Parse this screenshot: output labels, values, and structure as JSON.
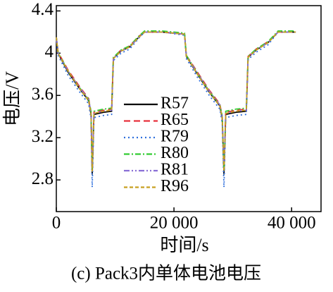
{
  "chart_data": {
    "type": "line",
    "caption": "(c) Pack3内单体电池电压",
    "xlabel": "时间/s",
    "ylabel": "电压/V",
    "x": [
      0,
      300,
      2000,
      4000,
      5500,
      5900,
      6100,
      6400,
      8000,
      9400,
      9700,
      11000,
      12500,
      14000,
      15000,
      18000,
      21800,
      22100,
      24000,
      26000,
      27800,
      28200,
      28500,
      28800,
      30500,
      32300,
      32600,
      34000,
      36000,
      37700,
      40700
    ],
    "xlim": [
      0,
      45000
    ],
    "xticks": [
      0,
      {
        "value": 20000,
        "label": "20 000"
      },
      {
        "value": 40000,
        "label": "40 000"
      }
    ],
    "ylim": [
      2.5,
      4.45
    ],
    "yticks": [
      2.8,
      3.2,
      3.6,
      4.0,
      4.4
    ],
    "legend": "center-left",
    "series": [
      {
        "name": "R57",
        "color": "#000000",
        "dash": "solid",
        "values": [
          4.15,
          4.0,
          3.82,
          3.66,
          3.55,
          3.42,
          2.85,
          3.42,
          3.44,
          3.45,
          3.95,
          4.02,
          4.06,
          4.15,
          4.2,
          4.2,
          4.18,
          3.97,
          3.8,
          3.63,
          3.5,
          3.38,
          2.85,
          3.42,
          3.44,
          3.45,
          3.96,
          4.03,
          4.1,
          4.2,
          4.2
        ]
      },
      {
        "name": "R65",
        "color": "#e8323c",
        "dash": "dashed",
        "values": [
          4.15,
          4.01,
          3.84,
          3.68,
          3.57,
          3.44,
          2.88,
          3.44,
          3.46,
          3.47,
          3.96,
          4.03,
          4.07,
          4.16,
          4.2,
          4.2,
          4.18,
          3.98,
          3.82,
          3.65,
          3.52,
          3.4,
          2.88,
          3.44,
          3.46,
          3.47,
          3.97,
          4.04,
          4.11,
          4.2,
          4.2
        ]
      },
      {
        "name": "R79",
        "color": "#2f6fdc",
        "dash": "dotted",
        "values": [
          4.14,
          3.98,
          3.79,
          3.63,
          3.52,
          3.38,
          2.73,
          3.39,
          3.41,
          3.42,
          3.93,
          4.0,
          4.04,
          4.14,
          4.2,
          4.2,
          4.17,
          3.95,
          3.77,
          3.6,
          3.47,
          3.34,
          2.73,
          3.39,
          3.41,
          3.42,
          3.94,
          4.01,
          4.08,
          4.2,
          4.2
        ]
      },
      {
        "name": "R80",
        "color": "#33cc33",
        "dash": "dashdot",
        "values": [
          4.15,
          4.01,
          3.83,
          3.67,
          3.56,
          3.45,
          2.9,
          3.45,
          3.47,
          3.48,
          3.96,
          4.03,
          4.07,
          4.16,
          4.21,
          4.21,
          4.19,
          3.98,
          3.81,
          3.64,
          3.51,
          3.41,
          2.9,
          3.45,
          3.47,
          3.48,
          3.97,
          4.04,
          4.11,
          4.21,
          4.21
        ]
      },
      {
        "name": "R81",
        "color": "#8a6fd6",
        "dash": "dashdotdot",
        "values": [
          4.15,
          4.0,
          3.83,
          3.67,
          3.56,
          3.44,
          2.95,
          3.43,
          3.45,
          3.46,
          3.95,
          4.02,
          4.06,
          4.15,
          4.2,
          4.2,
          4.18,
          3.97,
          3.81,
          3.64,
          3.51,
          3.4,
          2.95,
          3.43,
          3.45,
          3.46,
          3.96,
          4.03,
          4.1,
          4.2,
          4.2
        ]
      },
      {
        "name": "R96",
        "color": "#c8a020",
        "dash": "shortdash",
        "values": [
          4.15,
          4.0,
          3.83,
          3.66,
          3.55,
          3.43,
          2.88,
          3.43,
          3.45,
          3.46,
          3.95,
          4.02,
          4.06,
          4.15,
          4.2,
          4.2,
          4.18,
          3.97,
          3.8,
          3.63,
          3.5,
          3.39,
          2.88,
          3.43,
          3.45,
          3.46,
          3.96,
          4.03,
          4.1,
          4.2,
          4.2
        ]
      }
    ]
  }
}
